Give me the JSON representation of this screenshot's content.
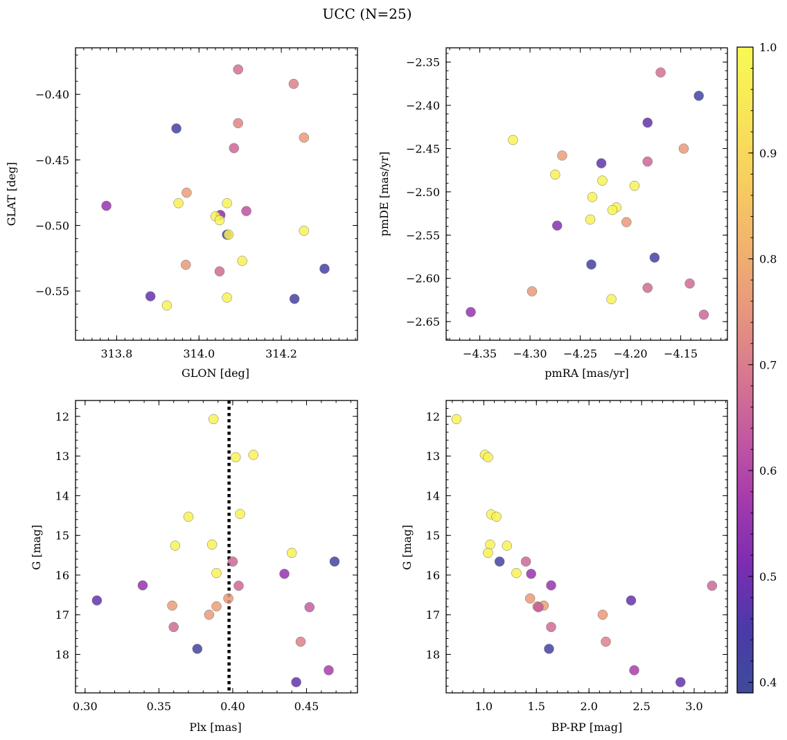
{
  "title": "UCC (N=25)",
  "colorbar": {
    "min": 0.39,
    "max": 1.0,
    "ticks": [
      0.4,
      0.5,
      0.6,
      0.7,
      0.8,
      0.9,
      1.0
    ],
    "tick_labels": [
      "0.4",
      "0.5",
      "0.6",
      "0.7",
      "0.8",
      "0.9",
      "1.0"
    ],
    "colormap": "plasma"
  },
  "chart_data": [
    {
      "type": "scatter",
      "id": "sky",
      "xlabel": "GLON [deg]",
      "ylabel": "GLAT [deg]",
      "xlim": [
        313.7,
        314.385
      ],
      "ylim": [
        -0.5875,
        -0.3645
      ],
      "y_inverted": false,
      "xticks": [
        313.8,
        314.0,
        314.2
      ],
      "xtick_labels": [
        "313.8",
        "314.0",
        "314.2"
      ],
      "yticks": [
        -0.4,
        -0.45,
        -0.5,
        -0.55
      ],
      "ytick_labels": [
        "−0.40",
        "−0.45",
        "−0.50",
        "−0.55"
      ],
      "x_minor_step": 0.02,
      "y_minor_step": 0.01,
      "points": [
        {
          "x": 314.095,
          "y": -0.381,
          "c": 0.68
        },
        {
          "x": 314.23,
          "y": -0.392,
          "c": 0.71
        },
        {
          "x": 314.095,
          "y": -0.422,
          "c": 0.72
        },
        {
          "x": 313.945,
          "y": -0.426,
          "c": 0.42
        },
        {
          "x": 314.255,
          "y": -0.433,
          "c": 0.76
        },
        {
          "x": 314.085,
          "y": -0.441,
          "c": 0.66
        },
        {
          "x": 313.775,
          "y": -0.485,
          "c": 0.55
        },
        {
          "x": 313.97,
          "y": -0.475,
          "c": 0.77
        },
        {
          "x": 313.95,
          "y": -0.483,
          "c": 0.97
        },
        {
          "x": 314.068,
          "y": -0.483,
          "c": 0.98
        },
        {
          "x": 314.115,
          "y": -0.489,
          "c": 0.62
        },
        {
          "x": 314.052,
          "y": -0.492,
          "c": 0.53
        },
        {
          "x": 314.04,
          "y": -0.493,
          "c": 0.98
        },
        {
          "x": 314.05,
          "y": -0.496,
          "c": 0.99
        },
        {
          "x": 314.068,
          "y": -0.507,
          "c": 0.43
        },
        {
          "x": 314.072,
          "y": -0.507,
          "c": 0.96
        },
        {
          "x": 314.255,
          "y": -0.504,
          "c": 0.98
        },
        {
          "x": 313.968,
          "y": -0.53,
          "c": 0.76
        },
        {
          "x": 314.105,
          "y": -0.527,
          "c": 0.97
        },
        {
          "x": 314.05,
          "y": -0.535,
          "c": 0.67
        },
        {
          "x": 314.305,
          "y": -0.533,
          "c": 0.42
        },
        {
          "x": 313.882,
          "y": -0.554,
          "c": 0.48
        },
        {
          "x": 314.068,
          "y": -0.555,
          "c": 0.98
        },
        {
          "x": 314.232,
          "y": -0.556,
          "c": 0.43
        },
        {
          "x": 313.922,
          "y": -0.561,
          "c": 0.98
        }
      ]
    },
    {
      "type": "scatter",
      "id": "pm",
      "xlabel": "pmRA [mas/yr]",
      "ylabel": "pmDE [mas/yr]",
      "xlim": [
        -4.3835,
        -4.1035
      ],
      "ylim": [
        -2.6715,
        -2.3335
      ],
      "y_inverted": false,
      "xticks": [
        -4.35,
        -4.3,
        -4.25,
        -4.2,
        -4.15
      ],
      "xtick_labels": [
        "−4.35",
        "−4.30",
        "−4.25",
        "−4.20",
        "−4.15"
      ],
      "yticks": [
        -2.35,
        -2.4,
        -2.45,
        -2.5,
        -2.55,
        -2.6,
        -2.65
      ],
      "ytick_labels": [
        "−2.35",
        "−2.40",
        "−2.45",
        "−2.50",
        "−2.55",
        "−2.60",
        "−2.65"
      ],
      "x_minor_step": 0.01,
      "y_minor_step": 0.01,
      "points": [
        {
          "x": -4.17,
          "y": -2.362,
          "c": 0.68
        },
        {
          "x": -4.132,
          "y": -2.389,
          "c": 0.42
        },
        {
          "x": -4.183,
          "y": -2.42,
          "c": 0.48
        },
        {
          "x": -4.317,
          "y": -2.44,
          "c": 0.98
        },
        {
          "x": -4.147,
          "y": -2.45,
          "c": 0.76
        },
        {
          "x": -4.268,
          "y": -2.458,
          "c": 0.77
        },
        {
          "x": -4.183,
          "y": -2.465,
          "c": 0.66
        },
        {
          "x": -4.229,
          "y": -2.467,
          "c": 0.48
        },
        {
          "x": -4.275,
          "y": -2.48,
          "c": 0.97
        },
        {
          "x": -4.228,
          "y": -2.487,
          "c": 0.98
        },
        {
          "x": -4.196,
          "y": -2.493,
          "c": 0.98
        },
        {
          "x": -4.238,
          "y": -2.506,
          "c": 0.98
        },
        {
          "x": -4.214,
          "y": -2.518,
          "c": 0.98
        },
        {
          "x": -4.218,
          "y": -2.521,
          "c": 0.99
        },
        {
          "x": -4.24,
          "y": -2.532,
          "c": 0.98
        },
        {
          "x": -4.204,
          "y": -2.535,
          "c": 0.76
        },
        {
          "x": -4.273,
          "y": -2.539,
          "c": 0.53
        },
        {
          "x": -4.176,
          "y": -2.576,
          "c": 0.43
        },
        {
          "x": -4.239,
          "y": -2.584,
          "c": 0.43
        },
        {
          "x": -4.141,
          "y": -2.606,
          "c": 0.67
        },
        {
          "x": -4.183,
          "y": -2.611,
          "c": 0.67
        },
        {
          "x": -4.298,
          "y": -2.615,
          "c": 0.76
        },
        {
          "x": -4.219,
          "y": -2.624,
          "c": 0.98
        },
        {
          "x": -4.359,
          "y": -2.639,
          "c": 0.55
        },
        {
          "x": -4.127,
          "y": -2.642,
          "c": 0.66
        }
      ]
    },
    {
      "type": "scatter",
      "id": "plx",
      "xlabel": "Plx [mas]",
      "ylabel": "G [mag]",
      "xlim": [
        0.2935,
        0.4845
      ],
      "ylim": [
        18.97,
        11.6
      ],
      "y_inverted": true,
      "xticks": [
        0.3,
        0.35,
        0.4,
        0.45
      ],
      "xtick_labels": [
        "0.30",
        "0.35",
        "0.40",
        "0.45"
      ],
      "yticks": [
        12,
        13,
        14,
        15,
        16,
        17,
        18
      ],
      "ytick_labels": [
        "12",
        "13",
        "14",
        "15",
        "16",
        "17",
        "18"
      ],
      "x_minor_step": 0.01,
      "y_minor_step": 0.2,
      "vline": 0.3975,
      "points": [
        {
          "x": 0.387,
          "y": 12.07,
          "c": 0.98
        },
        {
          "x": 0.414,
          "y": 12.97,
          "c": 0.98
        },
        {
          "x": 0.402,
          "y": 13.03,
          "c": 0.98
        },
        {
          "x": 0.37,
          "y": 14.53,
          "c": 0.97
        },
        {
          "x": 0.405,
          "y": 14.46,
          "c": 0.98
        },
        {
          "x": 0.386,
          "y": 15.23,
          "c": 0.98
        },
        {
          "x": 0.361,
          "y": 15.26,
          "c": 0.98
        },
        {
          "x": 0.44,
          "y": 15.44,
          "c": 0.97
        },
        {
          "x": 0.469,
          "y": 15.66,
          "c": 0.42
        },
        {
          "x": 0.4,
          "y": 15.66,
          "c": 0.66
        },
        {
          "x": 0.389,
          "y": 15.95,
          "c": 0.98
        },
        {
          "x": 0.435,
          "y": 15.97,
          "c": 0.55
        },
        {
          "x": 0.339,
          "y": 16.26,
          "c": 0.55
        },
        {
          "x": 0.404,
          "y": 16.27,
          "c": 0.66
        },
        {
          "x": 0.397,
          "y": 16.59,
          "c": 0.76
        },
        {
          "x": 0.308,
          "y": 16.64,
          "c": 0.48
        },
        {
          "x": 0.359,
          "y": 16.77,
          "c": 0.77
        },
        {
          "x": 0.389,
          "y": 16.79,
          "c": 0.77
        },
        {
          "x": 0.452,
          "y": 16.81,
          "c": 0.64
        },
        {
          "x": 0.384,
          "y": 17.0,
          "c": 0.76
        },
        {
          "x": 0.36,
          "y": 17.31,
          "c": 0.67
        },
        {
          "x": 0.446,
          "y": 17.68,
          "c": 0.71
        },
        {
          "x": 0.376,
          "y": 17.86,
          "c": 0.42
        },
        {
          "x": 0.465,
          "y": 18.4,
          "c": 0.58
        },
        {
          "x": 0.443,
          "y": 18.7,
          "c": 0.48
        }
      ]
    },
    {
      "type": "scatter",
      "id": "cmd",
      "xlabel": "BP-RP [mag]",
      "ylabel": "G [mag]",
      "xlim": [
        0.642,
        3.316
      ],
      "ylim": [
        18.97,
        11.6
      ],
      "y_inverted": true,
      "xticks": [
        1.0,
        1.5,
        2.0,
        2.5,
        3.0
      ],
      "xtick_labels": [
        "1.0",
        "1.5",
        "2.0",
        "2.5",
        "3.0"
      ],
      "yticks": [
        12,
        13,
        14,
        15,
        16,
        17,
        18
      ],
      "ytick_labels": [
        "12",
        "13",
        "14",
        "15",
        "16",
        "17",
        "18"
      ],
      "x_minor_step": 0.1,
      "y_minor_step": 0.2,
      "points": [
        {
          "x": 0.74,
          "y": 12.07,
          "c": 0.98
        },
        {
          "x": 1.01,
          "y": 12.97,
          "c": 0.98
        },
        {
          "x": 1.04,
          "y": 13.03,
          "c": 0.98
        },
        {
          "x": 1.07,
          "y": 14.47,
          "c": 0.98
        },
        {
          "x": 1.12,
          "y": 14.53,
          "c": 0.97
        },
        {
          "x": 1.06,
          "y": 15.23,
          "c": 0.98
        },
        {
          "x": 1.22,
          "y": 15.26,
          "c": 0.98
        },
        {
          "x": 1.04,
          "y": 15.44,
          "c": 0.97
        },
        {
          "x": 1.15,
          "y": 15.66,
          "c": 0.42
        },
        {
          "x": 1.4,
          "y": 15.66,
          "c": 0.66
        },
        {
          "x": 1.31,
          "y": 15.95,
          "c": 0.98
        },
        {
          "x": 1.45,
          "y": 15.97,
          "c": 0.55
        },
        {
          "x": 1.64,
          "y": 16.26,
          "c": 0.55
        },
        {
          "x": 3.17,
          "y": 16.27,
          "c": 0.66
        },
        {
          "x": 1.44,
          "y": 16.59,
          "c": 0.76
        },
        {
          "x": 2.4,
          "y": 16.64,
          "c": 0.48
        },
        {
          "x": 1.57,
          "y": 16.77,
          "c": 0.77
        },
        {
          "x": 1.51,
          "y": 16.79,
          "c": 0.77
        },
        {
          "x": 1.52,
          "y": 16.81,
          "c": 0.64
        },
        {
          "x": 2.13,
          "y": 17.0,
          "c": 0.76
        },
        {
          "x": 1.64,
          "y": 17.31,
          "c": 0.67
        },
        {
          "x": 2.16,
          "y": 17.68,
          "c": 0.71
        },
        {
          "x": 1.62,
          "y": 17.86,
          "c": 0.42
        },
        {
          "x": 2.43,
          "y": 18.4,
          "c": 0.58
        },
        {
          "x": 2.87,
          "y": 18.7,
          "c": 0.48
        }
      ]
    }
  ]
}
